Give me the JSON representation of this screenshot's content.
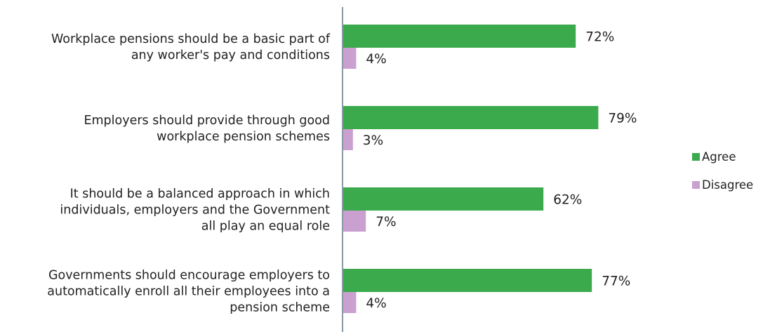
{
  "chart_data": {
    "type": "bar",
    "orientation": "horizontal",
    "categories": [
      [
        "Workplace pensions should be a basic part of",
        "any worker's pay and conditions"
      ],
      [
        "Employers should provide through good",
        "workplace pension schemes"
      ],
      [
        "It should be a balanced approach in which",
        "individuals, employers and the Government",
        "all play an equal role"
      ],
      [
        "Governments should encourage employers to",
        "automatically enroll all their employees into a",
        "pension scheme"
      ]
    ],
    "series": [
      {
        "name": "Agree",
        "color": "#3aaa4c",
        "values": [
          72,
          79,
          62,
          77
        ],
        "labels": [
          "72%",
          "79%",
          "62%",
          "77%"
        ]
      },
      {
        "name": "Disagree",
        "color": "#c9a0d0",
        "values": [
          4,
          3,
          7,
          4
        ],
        "labels": [
          "4%",
          "3%",
          "7%",
          "4%"
        ]
      }
    ],
    "xlim": [
      0,
      100
    ],
    "unit": "%",
    "axis_color": "#8a9aa6",
    "grid": false,
    "legend_position": "right"
  }
}
